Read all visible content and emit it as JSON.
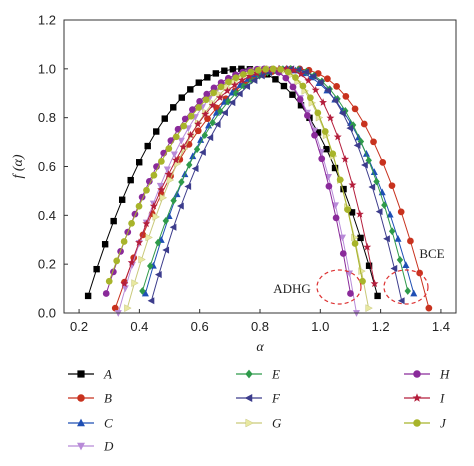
{
  "chart_data": {
    "type": "scatter",
    "xlabel": "α",
    "ylabel": "f (α)",
    "xlim": [
      0.15,
      1.45
    ],
    "ylim": [
      0.0,
      1.2
    ],
    "xticks": [
      "0.2",
      "0.4",
      "0.6",
      "0.8",
      "1.0",
      "1.2",
      "1.4"
    ],
    "yticks": [
      "0.0",
      "0.2",
      "0.4",
      "0.6",
      "0.8",
      "1.0",
      "1.2"
    ],
    "grid": false,
    "legend_position": "bottom",
    "annotations": [
      "ADHG",
      "BCE"
    ],
    "series": [
      {
        "name": "A",
        "marker": "square",
        "color": "#000000",
        "alpha_min": 0.23,
        "alpha_peak": 0.74,
        "alpha_max": 1.19,
        "f_min": 0.07
      },
      {
        "name": "B",
        "marker": "circle",
        "color": "#c8321e",
        "alpha_min": 0.32,
        "alpha_peak": 0.92,
        "alpha_max": 1.36,
        "f_min": 0.02
      },
      {
        "name": "C",
        "marker": "triangle-up",
        "color": "#1f4fb4",
        "alpha_min": 0.42,
        "alpha_peak": 0.87,
        "alpha_max": 1.31,
        "f_min": 0.08
      },
      {
        "name": "D",
        "marker": "triangle-down",
        "color": "#b88ad8",
        "alpha_min": 0.33,
        "alpha_peak": 0.82,
        "alpha_max": 1.12,
        "f_min": 0.0
      },
      {
        "name": "E",
        "marker": "diamond",
        "color": "#2e9a4a",
        "alpha_min": 0.41,
        "alpha_peak": 0.9,
        "alpha_max": 1.29,
        "f_min": 0.09
      },
      {
        "name": "F",
        "marker": "triangle-left",
        "color": "#3c3c8c",
        "alpha_min": 0.44,
        "alpha_peak": 0.9,
        "alpha_max": 1.27,
        "f_min": 0.05
      },
      {
        "name": "G",
        "marker": "triangle-right",
        "color": "#e8e8a0",
        "alpha_min": 0.36,
        "alpha_peak": 0.84,
        "alpha_max": 1.16,
        "f_min": 0.02
      },
      {
        "name": "H",
        "marker": "circle",
        "color": "#8a2a9a",
        "alpha_min": 0.29,
        "alpha_peak": 0.82,
        "alpha_max": 1.1,
        "f_min": 0.08
      },
      {
        "name": "I",
        "marker": "star",
        "color": "#b41e3c",
        "alpha_min": 0.35,
        "alpha_peak": 0.88,
        "alpha_max": 1.18,
        "f_min": 0.12
      },
      {
        "name": "J",
        "marker": "circle",
        "color": "#a8b42a",
        "alpha_min": 0.3,
        "alpha_peak": 0.85,
        "alpha_max": 1.14,
        "f_min": 0.13
      }
    ]
  }
}
